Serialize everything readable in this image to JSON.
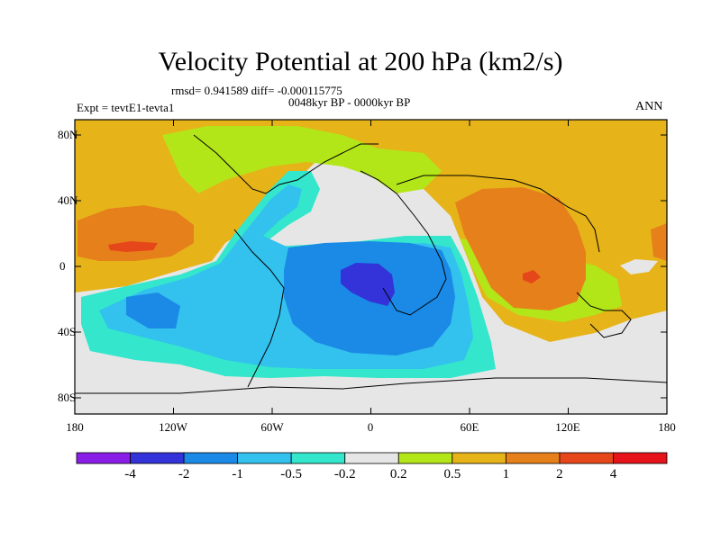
{
  "title": "Velocity Potential at 200 hPa (km2/s)",
  "stats_line": "rmsd= 0.941589 diff= -0.000115775",
  "period_line": "0048kyr BP - 0000kyr BP",
  "experiment": "Expt = tevtE1-tevta1",
  "season": "ANN",
  "y_ticks": [
    "80N",
    "40N",
    "0",
    "40S",
    "80S"
  ],
  "x_ticks": [
    "180",
    "120W",
    "60W",
    "0",
    "60E",
    "120E",
    "180"
  ],
  "colorbar": {
    "labels": [
      "-4",
      "-2",
      "-1",
      "-0.5",
      "-0.2",
      "0.2",
      "0.5",
      "1",
      "2",
      "4"
    ],
    "colors": [
      "#8a1ee6",
      "#3333d9",
      "#1a8ae6",
      "#33c1ee",
      "#33e6cc",
      "#e6e6e6",
      "#b3e619",
      "#e6b319",
      "#e6801a",
      "#e6471a",
      "#e6141a"
    ]
  },
  "colors": {
    "strong_negative": "#3333d9",
    "negative": "#1a8ae6",
    "weak_negative": "#33c1ee",
    "slight_negative": "#33e6cc",
    "neutral": "#e6e6e6",
    "slight_positive": "#b3e619",
    "positive": "#e6b319",
    "strong_positive": "#e6801a",
    "very_strong_positive": "#e6471a"
  }
}
